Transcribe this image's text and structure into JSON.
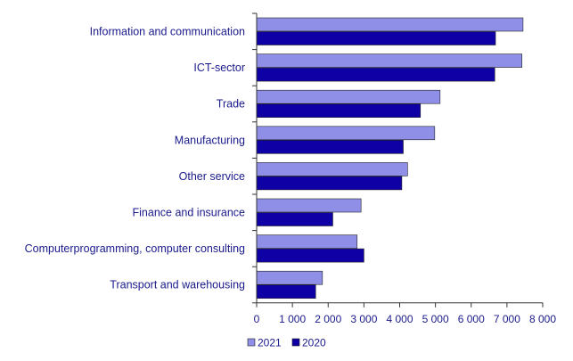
{
  "chart_data": {
    "type": "bar",
    "orientation": "horizontal",
    "categories": [
      "Information and communication",
      "ICT-sector",
      "Trade",
      "Manufacturing",
      "Other service",
      "Finance and insurance",
      "Computerprogramming, computer consulting",
      "Transport and warehousing"
    ],
    "series": [
      {
        "name": "2021",
        "values": [
          7450,
          7420,
          5130,
          4980,
          4220,
          2920,
          2810,
          1840
        ],
        "color": "#8f8fe8"
      },
      {
        "name": "2020",
        "values": [
          6680,
          6660,
          4580,
          4100,
          4060,
          2130,
          3000,
          1650
        ],
        "color": "#0f00a6"
      }
    ],
    "x_ticks": [
      "0",
      "1 000",
      "2 000",
      "3 000",
      "4 000",
      "5 000",
      "6 000",
      "7 000",
      "8 000"
    ],
    "xlim": [
      0,
      8000
    ],
    "grid": false,
    "legend_position": "bottom-left",
    "title": "",
    "xlabel": "",
    "ylabel": ""
  }
}
